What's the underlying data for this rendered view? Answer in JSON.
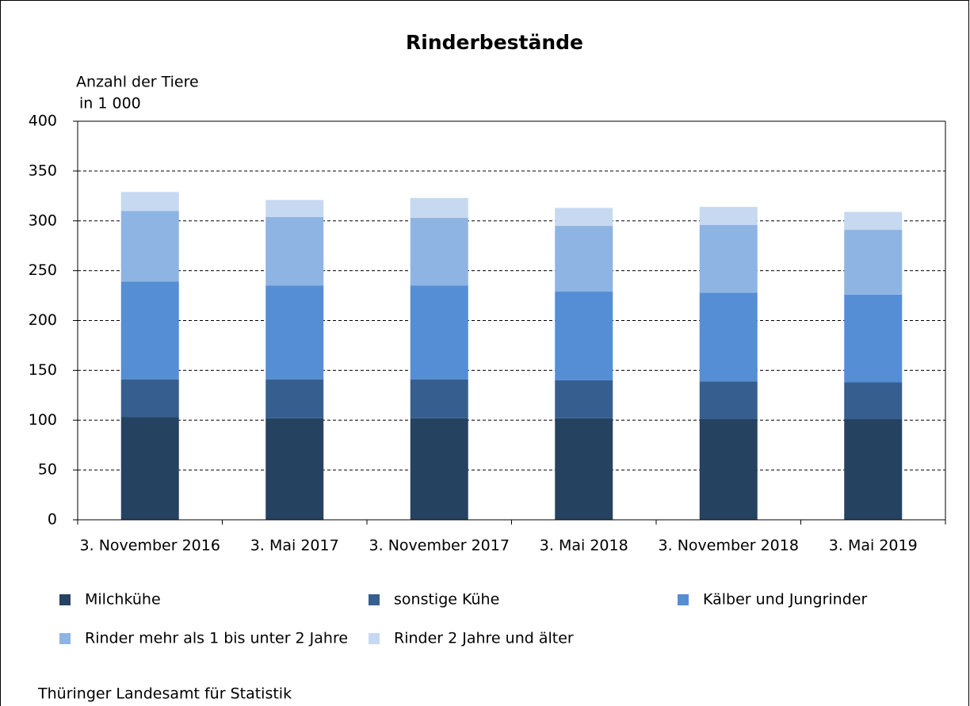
{
  "chart_data": {
    "type": "stacked_bar",
    "title": "Rinderbestände",
    "ylabel_lines": [
      "Anzahl der Tiere",
      "in 1 000"
    ],
    "categories": [
      "3. November 2016",
      "3. Mai 2017",
      "3. November 2017",
      "3. Mai 2018",
      "3. November 2018",
      "3. Mai 2019"
    ],
    "series": [
      {
        "name": "Milchkühe",
        "color": "#264261",
        "values": [
          103,
          102,
          102,
          102,
          101,
          101
        ]
      },
      {
        "name": "sonstige Kühe",
        "color": "#365f8f",
        "values": [
          38,
          39,
          39,
          38,
          38,
          37
        ]
      },
      {
        "name": "Kälber und Jungrinder",
        "color": "#558ed5",
        "values": [
          98,
          94,
          94,
          89,
          89,
          88
        ]
      },
      {
        "name": "Rinder mehr als 1 bis unter 2 Jahre",
        "color": "#8eb4e3",
        "values": [
          71,
          69,
          68,
          66,
          68,
          65
        ]
      },
      {
        "name": "Rinder 2 Jahre und älter",
        "color": "#c6d9f1",
        "values": [
          19,
          17,
          20,
          18,
          18,
          18
        ]
      }
    ],
    "ylim": [
      0,
      400
    ],
    "yticks": [
      0,
      50,
      100,
      150,
      200,
      250,
      300,
      350,
      400
    ],
    "grid": true,
    "source": "Thüringer Landesamt für Statistik"
  }
}
